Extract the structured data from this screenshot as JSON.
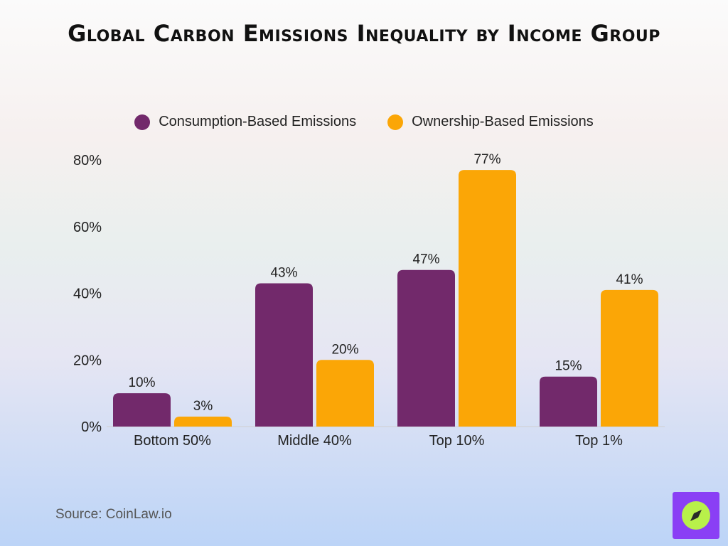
{
  "chart_data": {
    "type": "bar",
    "title": "Global Carbon Emissions Inequality by Income Group",
    "categories": [
      "Bottom 50%",
      "Middle 40%",
      "Top 10%",
      "Top 1%"
    ],
    "series": [
      {
        "name": "Consumption-Based Emissions",
        "values": [
          10,
          43,
          47,
          15
        ],
        "labels": [
          "10%",
          "43%",
          "47%",
          "15%"
        ],
        "color": "#72296b"
      },
      {
        "name": "Ownership-Based Emissions",
        "values": [
          3,
          20,
          77,
          41
        ],
        "labels": [
          "3%",
          "20%",
          "77%",
          "41%"
        ],
        "color": "#fba606"
      }
    ],
    "ylim": [
      0,
      80
    ],
    "yticks": [
      0,
      20,
      40,
      60,
      80
    ],
    "ytick_labels": [
      "0%",
      "20%",
      "40%",
      "60%",
      "80%"
    ],
    "xlabel": "",
    "ylabel": "",
    "grid": false,
    "legend_position": "top-center"
  },
  "source": "Source: CoinLaw.io",
  "logo_icon": "compass-icon",
  "colors": {
    "logo_bg": "#8a3ff5",
    "logo_circle": "#b8f04a"
  }
}
